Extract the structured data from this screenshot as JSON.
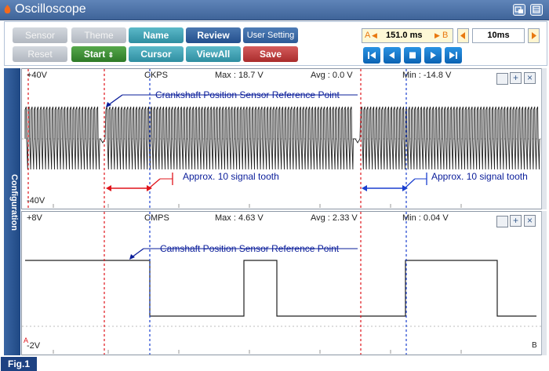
{
  "window": {
    "title": "Oscilloscope"
  },
  "toolbar": {
    "row1": [
      "Sensor",
      "Theme",
      "Name",
      "Review",
      "User Setting"
    ],
    "row2": [
      "Reset",
      "Start",
      "Cursor",
      "ViewAll",
      "Save"
    ],
    "cursor_a_label": "A",
    "cursor_time": "151.0 ms",
    "cursor_b_label": "B",
    "time_div": "10ms"
  },
  "sidebar": {
    "label": "Configuration"
  },
  "channel1": {
    "name": "CKPS",
    "max": "Max : 18.7 V",
    "avg": "Avg : 0.0 V",
    "min": "Min : -14.8 V",
    "top_scale": "+40V",
    "bottom_scale": "-40V",
    "annotation_ref": "Crankshaft Position Sensor Reference Point",
    "annotation_tooth_left": "Approx. 10 signal tooth",
    "annotation_tooth_right": "Approx. 10 signal tooth"
  },
  "channel2": {
    "name": "CMPS",
    "max": "Max : 4.63 V",
    "avg": "Avg : 2.33 V",
    "min": "Min : 0.04 V",
    "top_scale": "+8V",
    "bottom_scale": "-2V",
    "annotation_ref": "Camshaft Position Sensor Reference Point",
    "marker_a": "A",
    "marker_b": "B"
  },
  "figure_label": "Fig.1",
  "colors": {
    "accent": "#2f5d9a",
    "cursor_a": "#e0141b",
    "cursor_b": "#1a3fcf",
    "annotation": "#0a1d9a"
  }
}
